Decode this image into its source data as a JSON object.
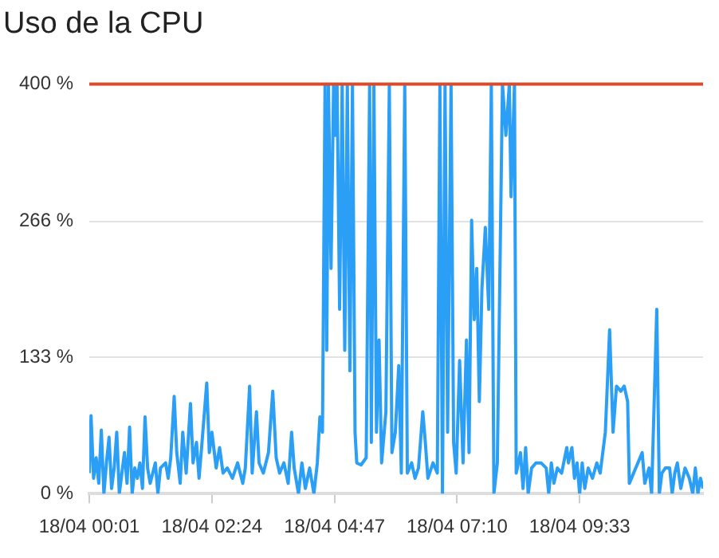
{
  "chart_data": {
    "type": "line",
    "title": "Uso de la CPU",
    "xlim": [
      "--04-18T00:01",
      "--04-18T11:57"
    ],
    "xticks": [
      {
        "value": "--04-18T00:01",
        "label": "18/04 00:01"
      },
      {
        "value": "--04-18T02:24",
        "label": "18/04 02:24"
      },
      {
        "value": "--04-18T04:47",
        "label": "18/04 04:47"
      },
      {
        "value": "--04-18T07:10",
        "label": "18/04 07:10"
      },
      {
        "value": "--04-18T09:33",
        "label": "18/04 09:33"
      }
    ],
    "ylim": [
      0,
      400
    ],
    "yticks": [
      {
        "value": 0,
        "label": "0 %"
      },
      {
        "value": 133,
        "label": "133 %"
      },
      {
        "value": 266,
        "label": "266 %"
      },
      {
        "value": 400,
        "label": "400 %"
      }
    ],
    "grid": "y",
    "legend": false,
    "marker": "none",
    "line_style": "solid",
    "ref_lines": [
      {
        "axis": "y",
        "value": 400,
        "color": "#dc4a2a"
      }
    ],
    "series": [
      {
        "color": "#2b9ff5",
        "x": [
          "--04-18T00:01",
          "--04-18T00:03",
          "--04-18T00:06",
          "--04-18T00:09",
          "--04-18T00:12",
          "--04-18T00:15",
          "--04-18T00:18",
          "--04-18T00:21",
          "--04-18T00:24",
          "--04-18T00:27",
          "--04-18T00:30",
          "--04-18T00:33",
          "--04-18T00:36",
          "--04-18T00:39",
          "--04-18T00:42",
          "--04-18T00:45",
          "--04-18T00:48",
          "--04-18T00:51",
          "--04-18T00:54",
          "--04-18T00:57",
          "--04-18T01:00",
          "--04-18T01:03",
          "--04-18T01:06",
          "--04-18T01:09",
          "--04-18T01:12",
          "--04-18T01:18",
          "--04-18T01:21",
          "--04-18T01:24",
          "--04-18T01:30",
          "--04-18T01:33",
          "--04-18T01:36",
          "--04-18T01:40",
          "--04-18T01:43",
          "--04-18T01:47",
          "--04-18T01:50",
          "--04-18T01:54",
          "--04-18T01:59",
          "--04-18T02:02",
          "--04-18T02:06",
          "--04-18T02:09",
          "--04-18T02:12",
          "--04-18T02:18",
          "--04-18T02:21",
          "--04-18T02:24",
          "--04-18T02:29",
          "--04-18T02:33",
          "--04-18T02:37",
          "--04-18T02:42",
          "--04-18T02:48",
          "--04-18T02:54",
          "--04-18T03:00",
          "--04-18T03:03",
          "--04-18T03:08",
          "--04-18T03:11",
          "--04-18T03:16",
          "--04-18T03:19",
          "--04-18T03:24",
          "--04-18T03:30",
          "--04-18T03:35",
          "--04-18T03:39",
          "--04-18T03:43",
          "--04-18T03:48",
          "--04-18T03:53",
          "--04-18T03:57",
          "--04-18T04:00",
          "--04-18T04:05",
          "--04-18T04:09",
          "--04-18T04:13",
          "--04-18T04:18",
          "--04-18T04:23",
          "--04-18T04:27",
          "--04-18T04:30",
          "--04-18T04:33",
          "--04-18T04:36",
          "--04-18T04:38",
          "--04-18T04:40",
          "--04-18T04:43",
          "--04-18T04:46",
          "--04-18T04:48",
          "--04-18T04:50",
          "--04-18T04:53",
          "--04-18T04:56",
          "--04-18T04:59",
          "--04-18T05:02",
          "--04-18T05:05",
          "--04-18T05:08",
          "--04-18T05:11",
          "--04-18T05:13",
          "--04-18T05:18",
          "--04-18T05:24",
          "--04-18T05:28",
          "--04-18T05:30",
          "--04-18T05:33",
          "--04-18T05:36",
          "--04-18T05:39",
          "--04-18T05:42",
          "--04-18T05:47",
          "--04-18T05:51",
          "--04-18T05:54",
          "--04-18T05:58",
          "--04-18T06:02",
          "--04-18T06:05",
          "--04-18T06:09",
          "--04-18T06:12",
          "--04-18T06:17",
          "--04-18T06:21",
          "--04-18T06:25",
          "--04-18T06:30",
          "--04-18T06:33",
          "--04-18T06:36",
          "--04-18T06:42",
          "--04-18T06:47",
          "--04-18T06:50",
          "--04-18T06:53",
          "--04-18T06:56",
          "--04-18T06:59",
          "--04-18T07:03",
          "--04-18T07:06",
          "--04-18T07:09",
          "--04-18T07:13",
          "--04-18T07:17",
          "--04-18T07:21",
          "--04-18T07:24",
          "--04-18T07:27",
          "--04-18T07:30",
          "--04-18T07:33",
          "--04-18T07:36",
          "--04-18T07:39",
          "--04-18T07:43",
          "--04-18T07:47",
          "--04-18T07:50",
          "--04-18T07:53",
          "--04-18T07:57",
          "--04-18T08:03",
          "--04-18T08:07",
          "--04-18T08:11",
          "--04-18T08:13",
          "--04-18T08:17",
          "--04-18T08:19",
          "--04-18T08:24",
          "--04-18T08:27",
          "--04-18T08:30",
          "--04-18T08:33",
          "--04-18T08:37",
          "--04-18T08:42",
          "--04-18T08:48",
          "--04-18T08:54",
          "--04-18T08:57",
          "--04-18T09:00",
          "--04-18T09:03",
          "--04-18T09:07",
          "--04-18T09:12",
          "--04-18T09:18",
          "--04-18T09:20",
          "--04-18T09:24",
          "--04-18T09:27",
          "--04-18T09:30",
          "--04-18T09:33",
          "--04-18T09:36",
          "--04-18T09:39",
          "--04-18T09:43",
          "--04-18T09:48",
          "--04-18T09:53",
          "--04-18T09:57",
          "--04-18T10:03",
          "--04-18T10:08",
          "--04-18T10:12",
          "--04-18T10:16",
          "--04-18T10:21",
          "--04-18T10:25",
          "--04-18T10:29",
          "--04-18T10:31",
          "--04-18T10:46",
          "--04-18T10:49",
          "--04-18T10:54",
          "--04-18T10:57",
          "--04-18T11:03",
          "--04-18T11:06",
          "--04-18T11:09",
          "--04-18T11:13",
          "--04-18T11:18",
          "--04-18T11:21",
          "--04-18T11:24",
          "--04-18T11:27",
          "--04-18T11:31",
          "--04-18T11:36",
          "--04-18T11:41",
          "--04-18T11:45",
          "--04-18T11:48",
          "--04-18T11:51",
          "--04-18T11:54",
          "--04-18T11:57"
        ],
        "values": [
          20,
          76,
          15,
          35,
          10,
          62,
          0,
          30,
          55,
          5,
          25,
          60,
          0,
          20,
          40,
          10,
          65,
          0,
          25,
          15,
          30,
          5,
          75,
          25,
          10,
          30,
          0,
          25,
          30,
          15,
          35,
          95,
          40,
          10,
          60,
          20,
          88,
          30,
          50,
          15,
          45,
          108,
          40,
          60,
          25,
          45,
          20,
          25,
          15,
          30,
          10,
          25,
          105,
          20,
          80,
          30,
          20,
          40,
          100,
          35,
          20,
          30,
          10,
          60,
          25,
          0,
          30,
          5,
          25,
          0,
          30,
          75,
          60,
          400,
          140,
          400,
          220,
          400,
          350,
          400,
          180,
          400,
          140,
          400,
          120,
          400,
          60,
          30,
          28,
          35,
          400,
          50,
          400,
          60,
          150,
          30,
          80,
          400,
          40,
          60,
          125,
          20,
          400,
          20,
          30,
          15,
          25,
          80,
          50,
          15,
          30,
          20,
          400,
          0,
          400,
          60,
          400,
          50,
          20,
          130,
          30,
          150,
          40,
          267,
          170,
          220,
          90,
          200,
          260,
          180,
          400,
          0,
          30,
          400,
          350,
          400,
          290,
          400,
          20,
          40,
          5,
          45,
          0,
          25,
          30,
          30,
          25,
          0,
          30,
          10,
          25,
          20,
          45,
          30,
          45,
          15,
          30,
          0,
          30,
          5,
          25,
          15,
          30,
          20,
          60,
          160,
          60,
          105,
          100,
          105,
          90,
          10,
          40,
          10,
          25,
          0,
          180,
          0,
          20,
          25,
          25,
          0,
          20,
          30,
          5,
          25,
          15,
          0,
          25,
          0,
          15,
          5
        ]
      }
    ]
  }
}
